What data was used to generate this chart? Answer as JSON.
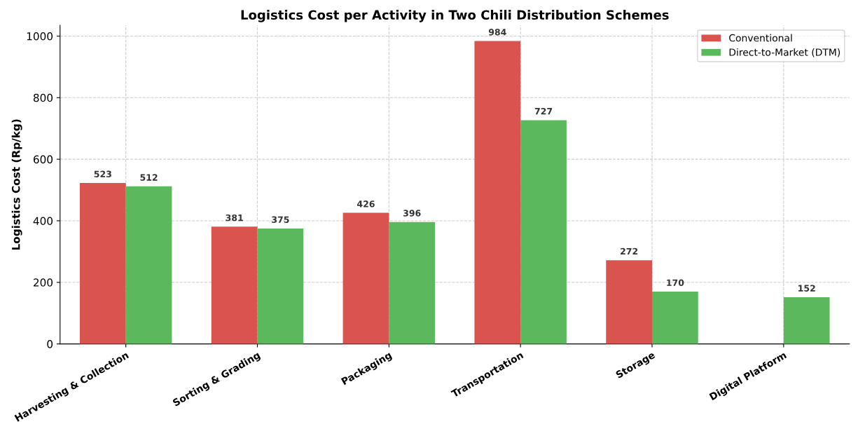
{
  "chart_data": {
    "type": "bar",
    "title": "Logistics Cost per Activity in Two Chili Distribution Schemes",
    "ylabel": "Logistics Cost (Rp/kg)",
    "categories": [
      "Harvesting & Collection",
      "Sorting & Grading",
      "Packaging",
      "Transportation",
      "Storage",
      "Digital Platform"
    ],
    "series": [
      {
        "name": "Conventional",
        "color": "#d9534f",
        "values": [
          523,
          381,
          426,
          984,
          272,
          null
        ]
      },
      {
        "name": "Direct-to-Market (DTM)",
        "color": "#5cb85c",
        "values": [
          512,
          375,
          396,
          727,
          170,
          152
        ]
      }
    ],
    "ylim": [
      0,
      1035
    ],
    "yticks": [
      0,
      200,
      400,
      600,
      800,
      1000
    ],
    "grid": true,
    "legend": "top right",
    "data_labels": true
  }
}
